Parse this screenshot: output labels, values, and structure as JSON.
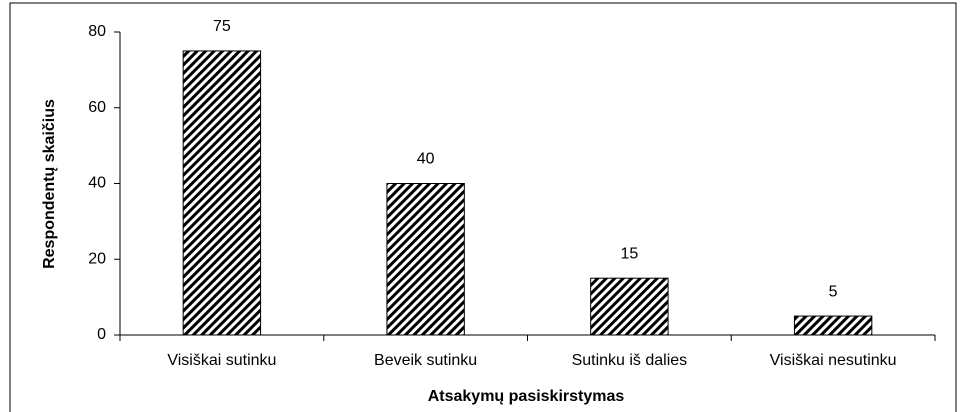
{
  "chart_data": {
    "type": "bar",
    "categories": [
      "Visiškai sutinku",
      "Beveik sutinku",
      "Sutinku iš dalies",
      "Visiškai nesutinku"
    ],
    "values": [
      75,
      40,
      15,
      5
    ],
    "color": "#000000",
    "x_label": "Atsakymų pasiskirstymas",
    "y_label": "Respondentų skaičius",
    "ylim": [
      0,
      80
    ],
    "yticks": [
      0,
      20,
      40,
      60,
      80
    ],
    "grid": false
  }
}
